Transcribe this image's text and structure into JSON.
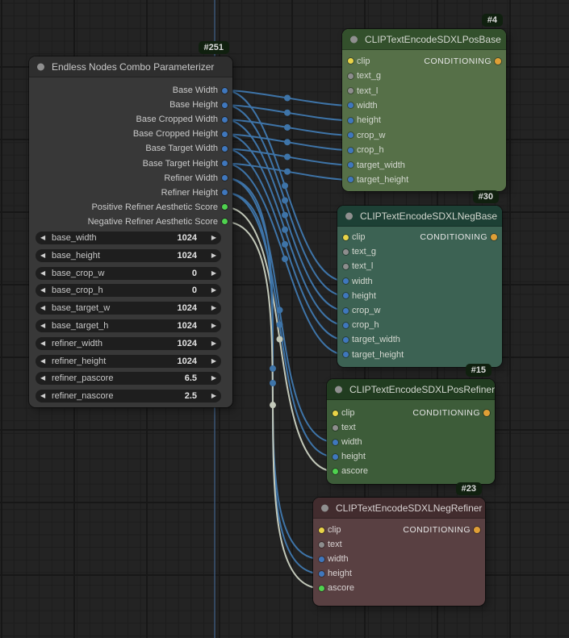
{
  "canvas": {
    "background": "#232323",
    "grid_minor": "#1c1c1c",
    "grid_major": "#171717",
    "offscreen_link_color": "#3a5474",
    "badge_bg": "#10200f",
    "badge_text": "#dedede"
  },
  "ui": {
    "arrow_left": "◀",
    "arrow_right": "▶"
  },
  "link_colors": {
    "number": "#3e74a8",
    "score": "#c3c9ba"
  },
  "slot_colors": {
    "clip": "#e9d347",
    "text": "#8d8d8d",
    "number": "#3f77bd",
    "score": "#4fd24f",
    "conditioning": "#df9f36"
  },
  "nodes": [
    {
      "id": "combo-parameterizer",
      "badge": "#251",
      "title": "Endless Nodes Combo Parameterizer",
      "colors": {
        "title_bg": "#2e2e2e",
        "body_bg": "#383838",
        "text": "#c9c9c9"
      },
      "inputs": [],
      "outputs": [
        {
          "label": "Base Width",
          "type": "number"
        },
        {
          "label": "Base Height",
          "type": "number"
        },
        {
          "label": "Base Cropped Width",
          "type": "number"
        },
        {
          "label": "Base Cropped Height",
          "type": "number"
        },
        {
          "label": "Base Target Width",
          "type": "number"
        },
        {
          "label": "Base Target Height",
          "type": "number"
        },
        {
          "label": "Refiner Width",
          "type": "number"
        },
        {
          "label": "Refiner Height",
          "type": "number"
        },
        {
          "label": "Positive Refiner Aesthetic Score",
          "type": "score"
        },
        {
          "label": "Negative Refiner Aesthetic Score",
          "type": "score"
        }
      ],
      "widgets": [
        {
          "name": "base_width",
          "value": "1024"
        },
        {
          "name": "base_height",
          "value": "1024"
        },
        {
          "name": "base_crop_w",
          "value": "0"
        },
        {
          "name": "base_crop_h",
          "value": "0"
        },
        {
          "name": "base_target_w",
          "value": "1024"
        },
        {
          "name": "base_target_h",
          "value": "1024"
        },
        {
          "name": "refiner_width",
          "value": "1024"
        },
        {
          "name": "refiner_height",
          "value": "1024"
        },
        {
          "name": "refiner_pascore",
          "value": "6.5"
        },
        {
          "name": "refiner_nascore",
          "value": "2.5"
        }
      ]
    },
    {
      "id": "pos-base",
      "badge": "#4",
      "title": "CLIPTextEncodeSDXLPosBase",
      "colors": {
        "title_bg": "#33502c",
        "body_bg": "#567048",
        "text": "#d3d7cf"
      },
      "inputs": [
        {
          "label": "clip",
          "type": "clip"
        },
        {
          "label": "text_g",
          "type": "text"
        },
        {
          "label": "text_l",
          "type": "text"
        },
        {
          "label": "width",
          "type": "number"
        },
        {
          "label": "height",
          "type": "number"
        },
        {
          "label": "crop_w",
          "type": "number"
        },
        {
          "label": "crop_h",
          "type": "number"
        },
        {
          "label": "target_width",
          "type": "number"
        },
        {
          "label": "target_height",
          "type": "number"
        }
      ],
      "outputs": [
        {
          "label": "CONDITIONING",
          "type": "conditioning"
        }
      ],
      "widgets": []
    },
    {
      "id": "neg-base",
      "badge": "#30",
      "title": "CLIPTextEncodeSDXLNegBase",
      "colors": {
        "title_bg": "#1d4035",
        "body_bg": "#3c6253",
        "text": "#d3d7cf"
      },
      "inputs": [
        {
          "label": "clip",
          "type": "clip"
        },
        {
          "label": "text_g",
          "type": "text"
        },
        {
          "label": "text_l",
          "type": "text"
        },
        {
          "label": "width",
          "type": "number"
        },
        {
          "label": "height",
          "type": "number"
        },
        {
          "label": "crop_w",
          "type": "number"
        },
        {
          "label": "crop_h",
          "type": "number"
        },
        {
          "label": "target_width",
          "type": "number"
        },
        {
          "label": "target_height",
          "type": "number"
        }
      ],
      "outputs": [
        {
          "label": "CONDITIONING",
          "type": "conditioning"
        }
      ],
      "widgets": []
    },
    {
      "id": "pos-refiner",
      "badge": "#15",
      "title": "CLIPTextEncodeSDXLPosRefiner",
      "colors": {
        "title_bg": "#213c20",
        "body_bg": "#3d5c39",
        "text": "#d3d7cf"
      },
      "inputs": [
        {
          "label": "clip",
          "type": "clip"
        },
        {
          "label": "text",
          "type": "text"
        },
        {
          "label": "width",
          "type": "number"
        },
        {
          "label": "height",
          "type": "number"
        },
        {
          "label": "ascore",
          "type": "score"
        }
      ],
      "outputs": [
        {
          "label": "CONDITIONING",
          "type": "conditioning"
        }
      ],
      "widgets": []
    },
    {
      "id": "neg-refiner",
      "badge": "#23",
      "title": "CLIPTextEncodeSDXLNegRefiner",
      "colors": {
        "title_bg": "#422c2e",
        "body_bg": "#594042",
        "text": "#d8d2d2"
      },
      "inputs": [
        {
          "label": "clip",
          "type": "clip"
        },
        {
          "label": "text",
          "type": "text"
        },
        {
          "label": "width",
          "type": "number"
        },
        {
          "label": "height",
          "type": "number"
        },
        {
          "label": "ascore",
          "type": "score"
        }
      ],
      "outputs": [
        {
          "label": "CONDITIONING",
          "type": "conditioning"
        }
      ],
      "widgets": []
    }
  ],
  "links": [
    {
      "from": {
        "node": "combo-parameterizer",
        "slot": 0
      },
      "to": {
        "node": "pos-base",
        "slot": 3
      },
      "type": "number"
    },
    {
      "from": {
        "node": "combo-parameterizer",
        "slot": 1
      },
      "to": {
        "node": "pos-base",
        "slot": 4
      },
      "type": "number"
    },
    {
      "from": {
        "node": "combo-parameterizer",
        "slot": 2
      },
      "to": {
        "node": "pos-base",
        "slot": 5
      },
      "type": "number"
    },
    {
      "from": {
        "node": "combo-parameterizer",
        "slot": 3
      },
      "to": {
        "node": "pos-base",
        "slot": 6
      },
      "type": "number"
    },
    {
      "from": {
        "node": "combo-parameterizer",
        "slot": 4
      },
      "to": {
        "node": "pos-base",
        "slot": 7
      },
      "type": "number"
    },
    {
      "from": {
        "node": "combo-parameterizer",
        "slot": 5
      },
      "to": {
        "node": "pos-base",
        "slot": 8
      },
      "type": "number"
    },
    {
      "from": {
        "node": "combo-parameterizer",
        "slot": 0
      },
      "to": {
        "node": "neg-base",
        "slot": 3
      },
      "type": "number"
    },
    {
      "from": {
        "node": "combo-parameterizer",
        "slot": 1
      },
      "to": {
        "node": "neg-base",
        "slot": 4
      },
      "type": "number"
    },
    {
      "from": {
        "node": "combo-parameterizer",
        "slot": 2
      },
      "to": {
        "node": "neg-base",
        "slot": 5
      },
      "type": "number"
    },
    {
      "from": {
        "node": "combo-parameterizer",
        "slot": 3
      },
      "to": {
        "node": "neg-base",
        "slot": 6
      },
      "type": "number"
    },
    {
      "from": {
        "node": "combo-parameterizer",
        "slot": 4
      },
      "to": {
        "node": "neg-base",
        "slot": 7
      },
      "type": "number"
    },
    {
      "from": {
        "node": "combo-parameterizer",
        "slot": 5
      },
      "to": {
        "node": "neg-base",
        "slot": 8
      },
      "type": "number"
    },
    {
      "from": {
        "node": "combo-parameterizer",
        "slot": 6
      },
      "to": {
        "node": "pos-refiner",
        "slot": 2
      },
      "type": "number"
    },
    {
      "from": {
        "node": "combo-parameterizer",
        "slot": 7
      },
      "to": {
        "node": "pos-refiner",
        "slot": 3
      },
      "type": "number"
    },
    {
      "from": {
        "node": "combo-parameterizer",
        "slot": 8
      },
      "to": {
        "node": "pos-refiner",
        "slot": 4
      },
      "type": "score"
    },
    {
      "from": {
        "node": "combo-parameterizer",
        "slot": 6
      },
      "to": {
        "node": "neg-refiner",
        "slot": 2
      },
      "type": "number"
    },
    {
      "from": {
        "node": "combo-parameterizer",
        "slot": 7
      },
      "to": {
        "node": "neg-refiner",
        "slot": 3
      },
      "type": "number"
    },
    {
      "from": {
        "node": "combo-parameterizer",
        "slot": 9
      },
      "to": {
        "node": "neg-refiner",
        "slot": 4
      },
      "type": "score"
    }
  ]
}
